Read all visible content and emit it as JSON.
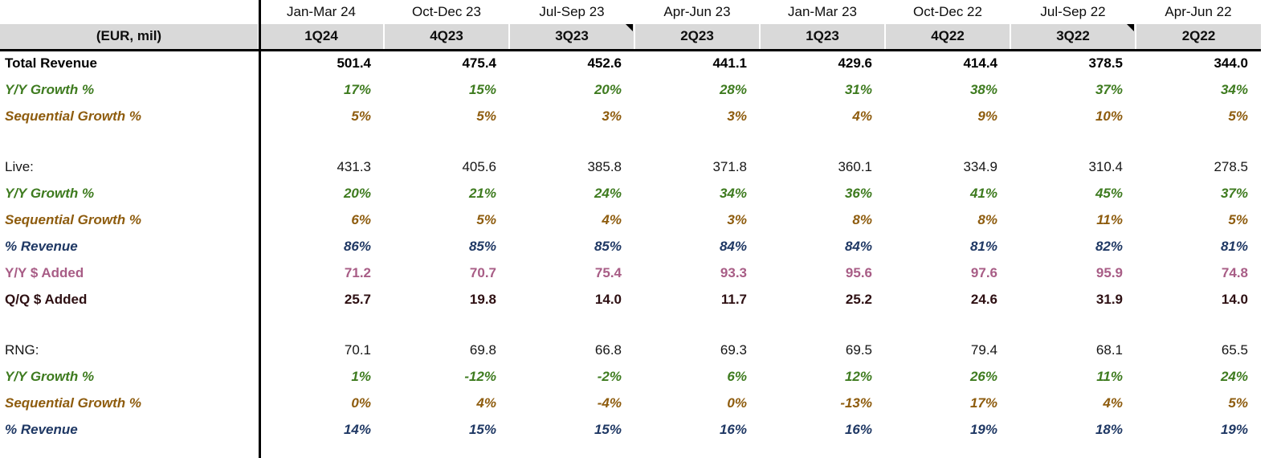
{
  "table": {
    "unit_label": "(EUR, mil)",
    "colors": {
      "header_bg": "#d9d9d9",
      "divider": "#000000",
      "header_text": "#0d0d0d"
    },
    "columns": [
      {
        "period": "Jan-Mar 24",
        "quarter": "1Q24",
        "comment_marker": false
      },
      {
        "period": "Oct-Dec 23",
        "quarter": "4Q23",
        "comment_marker": false
      },
      {
        "period": "Jul-Sep 23",
        "quarter": "3Q23",
        "comment_marker": true
      },
      {
        "period": "Apr-Jun 23",
        "quarter": "2Q23",
        "comment_marker": false
      },
      {
        "period": "Jan-Mar 23",
        "quarter": "1Q23",
        "comment_marker": false
      },
      {
        "period": "Oct-Dec 22",
        "quarter": "4Q22",
        "comment_marker": false
      },
      {
        "period": "Jul-Sep 22",
        "quarter": "3Q22",
        "comment_marker": true
      },
      {
        "period": "Apr-Jun 22",
        "quarter": "2Q22",
        "comment_marker": false
      }
    ],
    "row_styles": {
      "total": {
        "color": "#000000",
        "bold": true,
        "italic": false
      },
      "yoy": {
        "color": "#3e7b1f",
        "bold": true,
        "italic": true
      },
      "seq": {
        "color": "#8e5c0e",
        "bold": true,
        "italic": true
      },
      "plain": {
        "color": "#161616",
        "bold": false,
        "italic": false
      },
      "pct_rev": {
        "color": "#1f3864",
        "bold": true,
        "italic": true
      },
      "yoy_added": {
        "color": "#a85d86",
        "bold": true,
        "italic": false
      },
      "qq_added": {
        "color": "#2e1013",
        "bold": true,
        "italic": false
      }
    },
    "rows": [
      {
        "label": "Total Revenue",
        "style": "total",
        "values": [
          "501.4",
          "475.4",
          "452.6",
          "441.1",
          "429.6",
          "414.4",
          "378.5",
          "344.0"
        ]
      },
      {
        "label": "Y/Y Growth %",
        "style": "yoy",
        "values": [
          "17%",
          "15%",
          "20%",
          "28%",
          "31%",
          "38%",
          "37%",
          "34%"
        ]
      },
      {
        "label": "Sequential Growth %",
        "style": "seq",
        "values": [
          "5%",
          "5%",
          "3%",
          "3%",
          "4%",
          "9%",
          "10%",
          "5%"
        ]
      },
      {
        "blank": true
      },
      {
        "label": "Live:",
        "style": "plain",
        "values": [
          "431.3",
          "405.6",
          "385.8",
          "371.8",
          "360.1",
          "334.9",
          "310.4",
          "278.5"
        ]
      },
      {
        "label": "Y/Y Growth %",
        "style": "yoy",
        "values": [
          "20%",
          "21%",
          "24%",
          "34%",
          "36%",
          "41%",
          "45%",
          "37%"
        ]
      },
      {
        "label": "Sequential Growth %",
        "style": "seq",
        "values": [
          "6%",
          "5%",
          "4%",
          "3%",
          "8%",
          "8%",
          "11%",
          "5%"
        ]
      },
      {
        "label": "% Revenue",
        "style": "pct_rev",
        "values": [
          "86%",
          "85%",
          "85%",
          "84%",
          "84%",
          "81%",
          "82%",
          "81%"
        ]
      },
      {
        "label": "Y/Y $ Added",
        "style": "yoy_added",
        "values": [
          "71.2",
          "70.7",
          "75.4",
          "93.3",
          "95.6",
          "97.6",
          "95.9",
          "74.8"
        ]
      },
      {
        "label": "Q/Q $ Added",
        "style": "qq_added",
        "values": [
          "25.7",
          "19.8",
          "14.0",
          "11.7",
          "25.2",
          "24.6",
          "31.9",
          "14.0"
        ]
      },
      {
        "blank": true
      },
      {
        "label": "RNG:",
        "style": "plain",
        "values": [
          "70.1",
          "69.8",
          "66.8",
          "69.3",
          "69.5",
          "79.4",
          "68.1",
          "65.5"
        ]
      },
      {
        "label": "Y/Y Growth %",
        "style": "yoy",
        "values": [
          "1%",
          "-12%",
          "-2%",
          "6%",
          "12%",
          "26%",
          "11%",
          "24%"
        ]
      },
      {
        "label": "Sequential Growth %",
        "style": "seq",
        "values": [
          "0%",
          "4%",
          "-4%",
          "0%",
          "-13%",
          "17%",
          "4%",
          "5%"
        ]
      },
      {
        "label": "% Revenue",
        "style": "pct_rev",
        "values": [
          "14%",
          "15%",
          "15%",
          "16%",
          "16%",
          "19%",
          "18%",
          "19%"
        ]
      }
    ]
  }
}
